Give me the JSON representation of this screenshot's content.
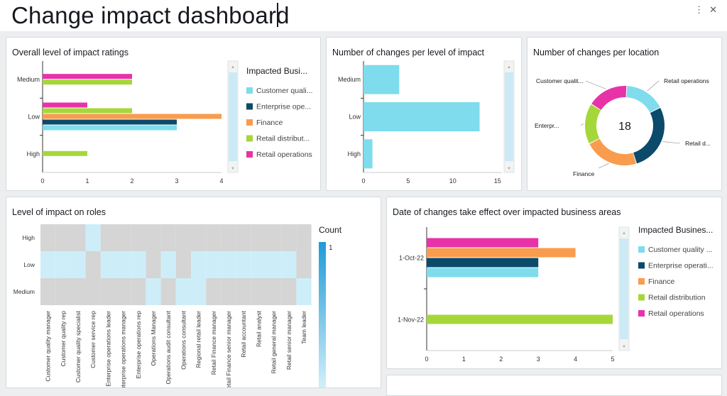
{
  "page": {
    "title": "Change impact dashboard",
    "more_icon": "more-vertical-icon",
    "close_icon": "close-icon"
  },
  "colors": {
    "cq": "#7edced",
    "eo": "#0b4a6a",
    "fin": "#f99c4e",
    "rd": "#a6d73a",
    "ro": "#e832a8",
    "grey": "#d5d5d5",
    "heat_light": "#cdeef8"
  },
  "chart_data": [
    {
      "id": "overall",
      "type": "bar",
      "orientation": "horizontal",
      "title": "Overall level of impact ratings",
      "categories": [
        "Medium",
        "Low",
        "High"
      ],
      "x_ticks": [
        "0",
        "1",
        "2",
        "3",
        "4"
      ],
      "xlim": [
        0,
        4
      ],
      "legend_title": "Impacted Busi...",
      "legend_position": "right",
      "series": [
        {
          "name": "Customer quali...",
          "color": "#7edced",
          "values": [
            0,
            3,
            0
          ]
        },
        {
          "name": "Enterprise ope...",
          "color": "#0b4a6a",
          "values": [
            0,
            3,
            0
          ]
        },
        {
          "name": "Finance",
          "color": "#f99c4e",
          "values": [
            0,
            4,
            0
          ]
        },
        {
          "name": "Retail distribut...",
          "color": "#a6d73a",
          "values": [
            2,
            2,
            1
          ]
        },
        {
          "name": "Retail operations",
          "color": "#e832a8",
          "values": [
            2,
            1,
            0
          ]
        }
      ]
    },
    {
      "id": "per_level",
      "type": "bar",
      "orientation": "horizontal",
      "title": "Number of changes per level of impact",
      "categories": [
        "Medium",
        "Low",
        "High"
      ],
      "values": [
        4,
        13,
        1
      ],
      "x_ticks": [
        "0",
        "5",
        "10",
        "15"
      ],
      "xlim": [
        0,
        15.5
      ],
      "color": "#7edced"
    },
    {
      "id": "per_location",
      "type": "pie",
      "title": "Number of changes per location",
      "center_label": "18",
      "slices": [
        {
          "name": "Retail operations",
          "value": 3,
          "color": "#7edced"
        },
        {
          "name": "Retail d...",
          "value": 5,
          "color": "#0b4a6a"
        },
        {
          "name": "Finance",
          "value": 4,
          "color": "#f99c4e"
        },
        {
          "name": "Enterpr...",
          "value": 3,
          "color": "#a6d73a"
        },
        {
          "name": "Customer qualit...",
          "value": 3,
          "color": "#e832a8"
        }
      ]
    },
    {
      "id": "roles",
      "type": "heatmap",
      "title": "Level of impact on roles",
      "rows": [
        "High",
        "Low",
        "Medium"
      ],
      "columns": [
        "Customer quality manager",
        "Customer quality rep",
        "Customer quality specialist",
        "Customer service rep",
        "Enterprise operations leader",
        "Enterprise operations manager",
        "Enterprise operations rep",
        "Operations Manager",
        "Operations audit consultant",
        "Operations consultant",
        "Regional retail leader",
        "Retail Finance manager",
        "Retail Finance senior manager",
        "Retail accountant",
        "Retail analyst",
        "Retail general manager",
        "Retail senior manager",
        "Team leader"
      ],
      "values": [
        [
          0,
          0,
          0,
          1,
          0,
          0,
          0,
          0,
          0,
          0,
          0,
          0,
          0,
          0,
          0,
          0,
          0,
          0
        ],
        [
          1,
          1,
          1,
          0,
          1,
          1,
          1,
          0,
          1,
          0,
          1,
          1,
          1,
          1,
          1,
          1,
          1,
          0
        ],
        [
          0,
          0,
          0,
          0,
          0,
          0,
          0,
          1,
          0,
          1,
          1,
          0,
          0,
          0,
          0,
          0,
          0,
          1
        ]
      ],
      "legend_title": "Count",
      "legend_max": "1"
    },
    {
      "id": "dates",
      "type": "bar",
      "orientation": "horizontal",
      "title": "Date of changes take effect over impacted business areas",
      "categories": [
        "1-Oct-22",
        "1-Nov-22"
      ],
      "x_ticks": [
        "0",
        "1",
        "2",
        "3",
        "4",
        "5"
      ],
      "xlim": [
        0,
        5
      ],
      "legend_title": "Impacted Busines...",
      "legend_position": "right",
      "series": [
        {
          "name": "Customer quality ...",
          "color": "#7edced",
          "values": [
            3,
            0
          ]
        },
        {
          "name": "Enterprise operati...",
          "color": "#0b4a6a",
          "values": [
            3,
            0
          ]
        },
        {
          "name": "Finance",
          "color": "#f99c4e",
          "values": [
            4,
            0
          ]
        },
        {
          "name": "Retail distribution",
          "color": "#a6d73a",
          "values": [
            0,
            5
          ]
        },
        {
          "name": "Retail operations",
          "color": "#e832a8",
          "values": [
            3,
            0
          ]
        }
      ]
    }
  ]
}
